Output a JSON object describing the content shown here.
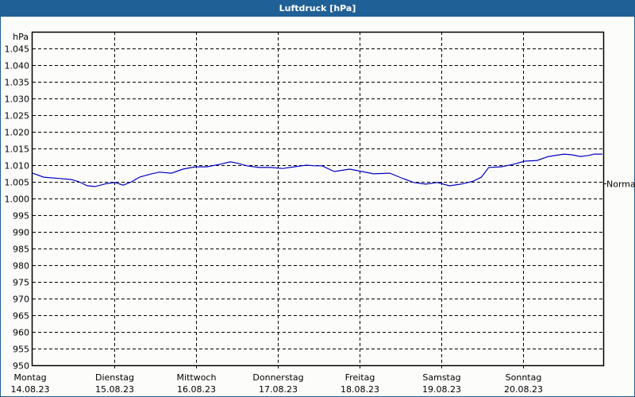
{
  "title": "Luftdruck [hPa]",
  "colors": {
    "titlebar": "#1f6096",
    "series": "#0000c0",
    "grid": "#000000",
    "background": "#fcfdfb"
  },
  "chart_data": {
    "type": "line",
    "title": "Luftdruck [hPa]",
    "xlabel": "",
    "ylabel": "hPa",
    "ylim": [
      950,
      1050
    ],
    "y_ticks": [
      "1.045",
      "1.040",
      "1.035",
      "1.030",
      "1.025",
      "1.020",
      "1.015",
      "1.010",
      "1.005",
      "1.000",
      "995",
      "990",
      "985",
      "980",
      "975",
      "970",
      "965",
      "960",
      "955",
      "950"
    ],
    "x_ticks": [
      {
        "day": "Montag",
        "date": "14.08.23"
      },
      {
        "day": "Dienstag",
        "date": "15.08.23"
      },
      {
        "day": "Mittwoch",
        "date": "16.08.23"
      },
      {
        "day": "Donnerstag",
        "date": "17.08.23"
      },
      {
        "day": "Freitag",
        "date": "18.08.23"
      },
      {
        "day": "Samstag",
        "date": "19.08.23"
      },
      {
        "day": "Sonntag",
        "date": "20.08.23"
      }
    ],
    "grid": true,
    "reference_line": {
      "label": "Normal",
      "value": 1004.5
    },
    "series": [
      {
        "name": "Luftdruck",
        "x_days": [
          0,
          0.136,
          0.33,
          0.475,
          0.57,
          0.67,
          0.765,
          0.91,
          1.01,
          1.11,
          1.21,
          1.31,
          1.455,
          1.55,
          1.7,
          1.84,
          1.99,
          2.13,
          2.28,
          2.42,
          2.52,
          2.62,
          2.77,
          2.91,
          3.06,
          3.2,
          3.35,
          3.45,
          3.54,
          3.69,
          3.88,
          4.03,
          4.17,
          4.37,
          4.51,
          4.66,
          4.81,
          4.95,
          5.1,
          5.24,
          5.39,
          5.49,
          5.58,
          5.73,
          5.87,
          6.02,
          6.17,
          6.31,
          6.5,
          6.6,
          6.7,
          6.8,
          6.87,
          6.97
        ],
        "values": [
          1007.6,
          1006.4,
          1006.0,
          1005.7,
          1005.0,
          1003.8,
          1003.6,
          1004.5,
          1004.8,
          1004.0,
          1005.0,
          1006.4,
          1007.4,
          1007.9,
          1007.6,
          1008.8,
          1009.5,
          1009.5,
          1010.2,
          1011.0,
          1010.5,
          1009.8,
          1009.3,
          1009.3,
          1009.0,
          1009.5,
          1010.0,
          1009.8,
          1009.8,
          1008.1,
          1008.8,
          1008.1,
          1007.4,
          1007.6,
          1006.2,
          1004.8,
          1004.3,
          1004.8,
          1003.8,
          1004.3,
          1005.2,
          1006.4,
          1009.3,
          1009.5,
          1010.2,
          1011.2,
          1011.4,
          1012.6,
          1013.3,
          1013.1,
          1012.6,
          1012.9,
          1013.3,
          1013.3
        ]
      }
    ]
  }
}
